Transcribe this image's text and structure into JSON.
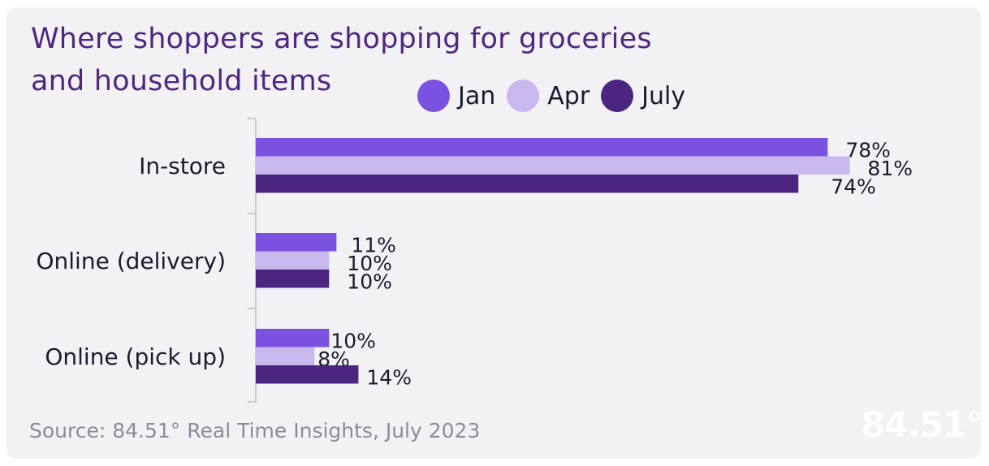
{
  "colors": {
    "jan": "#7a52e0",
    "apr": "#c7b9ee",
    "july": "#4b2580",
    "title": "#4e2780",
    "axis": "#c9c9d0"
  },
  "logo_text": "84.51°",
  "source": "Source: 84.51° Real Time Insights, July 2023",
  "chart_data": {
    "type": "bar",
    "orientation": "horizontal",
    "title": "Where shoppers are shopping for groceries and household items",
    "title_lines": [
      "Where shoppers are shopping for groceries",
      "and household items"
    ],
    "categories": [
      "In-store",
      "Online (delivery)",
      "Online (pick up)"
    ],
    "series": [
      {
        "name": "Jan",
        "values": [
          78,
          11,
          10
        ],
        "labels": [
          "78%",
          "11%",
          "10%"
        ]
      },
      {
        "name": "Apr",
        "values": [
          81,
          10,
          8
        ],
        "labels": [
          "81%",
          "10%",
          "8%"
        ]
      },
      {
        "name": "July",
        "values": [
          74,
          10,
          14
        ],
        "labels": [
          "74%",
          "10%",
          "14%"
        ]
      }
    ],
    "xlim": [
      0,
      100
    ],
    "xlabel": "",
    "ylabel": "",
    "grid": false,
    "legend_position": "top"
  }
}
